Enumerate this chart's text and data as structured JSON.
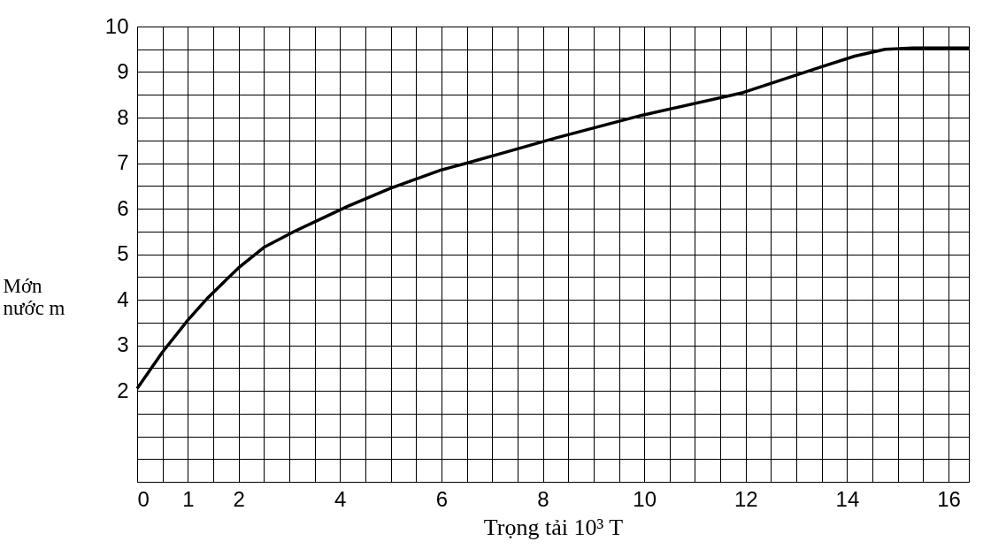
{
  "chart_data": {
    "type": "line",
    "xlabel": "Trọng tải 10³ T",
    "ylabel": "Mớn nước m",
    "x": [
      0,
      0.5,
      1.0,
      1.4,
      2.0,
      2.5,
      3.1,
      4.15,
      5.0,
      6.0,
      6.5,
      7.3,
      8.25,
      9.95,
      11.95,
      13.45,
      14.15,
      14.75,
      15.3,
      16.4
    ],
    "series": [
      {
        "color": "#000000",
        "values": [
          2.05,
          2.85,
          3.55,
          4.05,
          4.7,
          5.15,
          5.5,
          6.05,
          6.45,
          6.85,
          7.0,
          7.25,
          7.55,
          8.05,
          8.55,
          9.1,
          9.35,
          9.5,
          9.53,
          9.53
        ]
      }
    ],
    "xlim": [
      0,
      16.4
    ],
    "ylim": [
      0,
      10
    ],
    "xticks": [
      {
        "value": 0,
        "label": "0"
      },
      {
        "value": 0.5,
        "label": null
      },
      1,
      {
        "value": 1.5,
        "label": null
      },
      2,
      {
        "value": 2.5,
        "label": null
      },
      {
        "value": 3,
        "label": null
      },
      {
        "value": 3.5,
        "label": null
      },
      4,
      {
        "value": 4.5,
        "label": null
      },
      {
        "value": 5,
        "label": null
      },
      {
        "value": 5.5,
        "label": null
      },
      6,
      {
        "value": 6.5,
        "label": null
      },
      {
        "value": 7,
        "label": null
      },
      {
        "value": 7.5,
        "label": null
      },
      8,
      {
        "value": 8.5,
        "label": null
      },
      {
        "value": 9,
        "label": null
      },
      {
        "value": 9.5,
        "label": null
      },
      10,
      {
        "value": 10.5,
        "label": null
      },
      {
        "value": 11,
        "label": null
      },
      {
        "value": 11.5,
        "label": null
      },
      12,
      {
        "value": 12.5,
        "label": null
      },
      {
        "value": 13,
        "label": null
      },
      {
        "value": 13.5,
        "label": null
      },
      14,
      {
        "value": 14.5,
        "label": null
      },
      {
        "value": 15,
        "label": null
      },
      {
        "value": 15.5,
        "label": null
      },
      16
    ],
    "yticks": [
      {
        "value": 0,
        "label": null
      },
      {
        "value": 0.5,
        "label": null
      },
      {
        "value": 1,
        "label": null
      },
      {
        "value": 1.5,
        "label": null
      },
      2,
      {
        "value": 2.5,
        "label": null
      },
      3,
      {
        "value": 3.5,
        "label": null
      },
      4,
      {
        "value": 4.5,
        "label": null
      },
      5,
      {
        "value": 5.5,
        "label": null
      },
      6,
      {
        "value": 6.5,
        "label": null
      },
      7,
      {
        "value": 7.5,
        "label": null
      },
      8,
      {
        "value": 8.5,
        "label": null
      },
      9,
      {
        "value": 9.5,
        "label": null
      },
      10
    ],
    "grid": true,
    "marker": "none",
    "line_style": "solid"
  }
}
